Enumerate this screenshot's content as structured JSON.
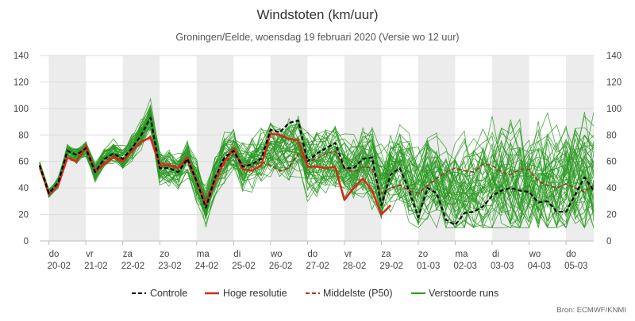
{
  "chart_data": {
    "type": "line",
    "title": "Windstoten (km/uur)",
    "subtitle": "Groningen/Eelde, woensdag 19 februari 2020 (Versie wo 12 uur)",
    "source": "Bron: ECMWF/KNMI",
    "ylim": [
      0,
      140
    ],
    "y_ticks": [
      0,
      20,
      40,
      60,
      80,
      100,
      120,
      140
    ],
    "x_range_days": [
      -0.25,
      14.75
    ],
    "grid": true,
    "legend_position": "bottom",
    "shaded_days": [
      0,
      2,
      4,
      6,
      8,
      10,
      12,
      14
    ],
    "days": [
      {
        "day": "do",
        "date": "20-02"
      },
      {
        "day": "vr",
        "date": "21-02"
      },
      {
        "day": "za",
        "date": "22-02"
      },
      {
        "day": "zo",
        "date": "23-02"
      },
      {
        "day": "ma",
        "date": "24-02"
      },
      {
        "day": "di",
        "date": "25-02"
      },
      {
        "day": "wo",
        "date": "26-02"
      },
      {
        "day": "do",
        "date": "27-02"
      },
      {
        "day": "vr",
        "date": "28-02"
      },
      {
        "day": "za",
        "date": "29-02"
      },
      {
        "day": "zo",
        "date": "01-03"
      },
      {
        "day": "ma",
        "date": "02-03"
      },
      {
        "day": "di",
        "date": "03-03"
      },
      {
        "day": "wo",
        "date": "04-03"
      },
      {
        "day": "do",
        "date": "05-03"
      }
    ],
    "legend": [
      {
        "label": "Controle",
        "color": "#000000",
        "style": "dashed"
      },
      {
        "label": "Hoge resolutie",
        "color": "#d42a1a",
        "style": "solid"
      },
      {
        "label": "Middelste (P50)",
        "color": "#9c3a2a",
        "style": "dashed"
      },
      {
        "label": "Verstoorde runs",
        "color": "#2c9a22",
        "style": "solid"
      }
    ],
    "series": [
      {
        "name": "Hoge resolutie",
        "color": "#d42a1a",
        "x": [
          -0.25,
          0,
          0.25,
          0.5,
          0.75,
          1,
          1.25,
          1.5,
          1.75,
          2,
          2.25,
          2.5,
          2.75,
          3,
          3.25,
          3.5,
          3.75,
          4,
          4.25,
          4.5,
          4.75,
          5,
          5.25,
          5.5,
          5.75,
          6,
          6.25,
          6.5,
          6.75,
          7,
          7.25,
          7.5,
          7.75,
          8,
          8.25,
          8.5,
          8.75,
          9,
          9.25
        ],
        "values": [
          57,
          35,
          42,
          63,
          60,
          72,
          52,
          58,
          63,
          60,
          68,
          75,
          78,
          57,
          57,
          55,
          63,
          45,
          27,
          45,
          60,
          70,
          54,
          53,
          57,
          81,
          80,
          77,
          76,
          56,
          56,
          55,
          56,
          31,
          40,
          47,
          38,
          20,
          27
        ]
      },
      {
        "name": "Controle",
        "color": "#000000",
        "x": [
          -0.25,
          0,
          0.25,
          0.5,
          0.75,
          1,
          1.25,
          1.5,
          1.75,
          2,
          2.25,
          2.5,
          2.75,
          3,
          3.25,
          3.5,
          3.75,
          4,
          4.25,
          4.5,
          4.75,
          5,
          5.25,
          5.5,
          5.75,
          6,
          6.25,
          6.5,
          6.75,
          7,
          7.25,
          7.5,
          7.75,
          8,
          8.25,
          8.5,
          8.75,
          9,
          9.25,
          9.5,
          9.75,
          10,
          10.25,
          10.5,
          10.75,
          11,
          11.25,
          11.5,
          11.75,
          12,
          12.25,
          12.5,
          12.75,
          13,
          13.25,
          13.5,
          13.75,
          14,
          14.25,
          14.5,
          14.75
        ],
        "values": [
          57,
          36,
          44,
          68,
          65,
          70,
          52,
          62,
          66,
          62,
          70,
          80,
          93,
          55,
          55,
          52,
          62,
          45,
          25,
          48,
          63,
          68,
          56,
          58,
          62,
          84,
          82,
          89,
          91,
          60,
          66,
          70,
          74,
          55,
          55,
          62,
          63,
          27,
          50,
          55,
          38,
          18,
          40,
          36,
          16,
          12,
          21,
          22,
          26,
          34,
          38,
          40,
          38,
          37,
          29,
          30,
          22,
          22,
          35,
          48,
          38
        ]
      },
      {
        "name": "Middelste (P50)",
        "color": "#9c3a2a",
        "x": [
          -0.25,
          0,
          0.25,
          0.5,
          0.75,
          1,
          1.25,
          1.5,
          1.75,
          2,
          2.25,
          2.5,
          2.75,
          3,
          3.25,
          3.5,
          3.75,
          4,
          4.25,
          4.5,
          4.75,
          5,
          5.25,
          5.5,
          5.75,
          6,
          6.25,
          6.5,
          6.75,
          7,
          7.25,
          7.5,
          7.75,
          8,
          8.25,
          8.5,
          8.75,
          9,
          9.25,
          9.5,
          9.75,
          10,
          10.25,
          10.5,
          10.75,
          11,
          11.25,
          11.5,
          11.75,
          12,
          12.25,
          12.5,
          12.75,
          13,
          13.25,
          13.5,
          13.75,
          14,
          14.25,
          14.5,
          14.75
        ],
        "values": [
          55,
          36,
          42,
          62,
          60,
          70,
          53,
          60,
          64,
          61,
          68,
          74,
          79,
          59,
          58,
          56,
          60,
          44,
          32,
          46,
          58,
          66,
          58,
          56,
          60,
          57,
          53,
          55,
          66,
          60,
          62,
          66,
          68,
          55,
          52,
          56,
          55,
          36,
          40,
          42,
          38,
          36,
          42,
          47,
          52,
          55,
          53,
          52,
          58,
          57,
          52,
          50,
          54,
          54,
          45,
          42,
          40,
          43,
          40,
          37,
          42
        ]
      }
    ]
  }
}
